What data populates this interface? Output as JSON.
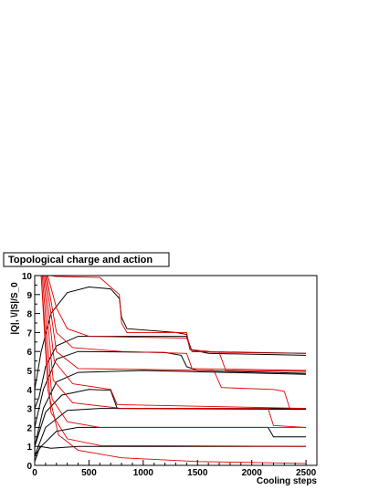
{
  "chart_data": {
    "type": "line",
    "title": "Topological charge and action",
    "xlabel": "Cooling steps",
    "ylabel": "|Q|, \\/|S|/S_0",
    "xlim": [
      0,
      2600
    ],
    "ylim": [
      0,
      10
    ],
    "x_ticks": [
      0,
      500,
      1000,
      1500,
      2000,
      2500
    ],
    "y_ticks": [
      0,
      1,
      2,
      3,
      4,
      5,
      6,
      7,
      8,
      9,
      10
    ],
    "grid": false,
    "colors": {
      "charge": "#000000",
      "action": "#e00000"
    },
    "series": [
      {
        "kind": "charge",
        "points": [
          [
            0,
            3.0
          ],
          [
            40,
            3.6
          ],
          [
            100,
            5.2
          ],
          [
            200,
            6.3
          ],
          [
            400,
            6.8
          ],
          [
            1400,
            6.8
          ],
          [
            1450,
            6.0
          ],
          [
            2500,
            5.9
          ]
        ]
      },
      {
        "kind": "charge",
        "points": [
          [
            0,
            4.0
          ],
          [
            60,
            6.0
          ],
          [
            150,
            8.0
          ],
          [
            300,
            9.1
          ],
          [
            500,
            9.4
          ],
          [
            700,
            9.3
          ],
          [
            780,
            8.8
          ],
          [
            800,
            7.8
          ],
          [
            850,
            7.2
          ],
          [
            1300,
            7.0
          ],
          [
            1400,
            6.9
          ],
          [
            1430,
            6.1
          ],
          [
            1600,
            5.9
          ],
          [
            2500,
            5.8
          ]
        ]
      },
      {
        "kind": "charge",
        "points": [
          [
            0,
            2.0
          ],
          [
            80,
            4.0
          ],
          [
            200,
            5.6
          ],
          [
            400,
            6.0
          ],
          [
            1200,
            5.95
          ],
          [
            1350,
            5.8
          ],
          [
            1400,
            5.2
          ],
          [
            1500,
            5.0
          ],
          [
            2500,
            4.85
          ]
        ]
      },
      {
        "kind": "charge",
        "points": [
          [
            0,
            1.0
          ],
          [
            80,
            3.0
          ],
          [
            200,
            4.4
          ],
          [
            400,
            4.9
          ],
          [
            1000,
            5.0
          ],
          [
            2500,
            4.8
          ]
        ]
      },
      {
        "kind": "charge",
        "points": [
          [
            0,
            1.0
          ],
          [
            100,
            2.8
          ],
          [
            250,
            3.7
          ],
          [
            500,
            4.0
          ],
          [
            700,
            3.95
          ],
          [
            760,
            3.0
          ],
          [
            2500,
            2.95
          ]
        ]
      },
      {
        "kind": "charge",
        "points": [
          [
            0,
            0.5
          ],
          [
            100,
            2.0
          ],
          [
            300,
            2.9
          ],
          [
            600,
            3.0
          ],
          [
            2500,
            3.0
          ]
        ]
      },
      {
        "kind": "charge",
        "points": [
          [
            0,
            0.5
          ],
          [
            60,
            1.0
          ],
          [
            200,
            1.8
          ],
          [
            400,
            2.0
          ],
          [
            2150,
            2.0
          ],
          [
            2200,
            1.5
          ],
          [
            2500,
            1.5
          ]
        ]
      },
      {
        "kind": "charge",
        "points": [
          [
            0,
            0.2
          ],
          [
            50,
            1.0
          ],
          [
            150,
            0.9
          ],
          [
            400,
            1.0
          ],
          [
            2500,
            1.0
          ]
        ]
      },
      {
        "kind": "charge",
        "points": [
          [
            0,
            0.0
          ],
          [
            100,
            0.0
          ],
          [
            2500,
            0.0
          ]
        ]
      },
      {
        "kind": "action",
        "points": [
          [
            150,
            10
          ],
          [
            200,
            9.95
          ],
          [
            600,
            9.9
          ],
          [
            780,
            9.0
          ],
          [
            800,
            7.5
          ],
          [
            830,
            7.2
          ],
          [
            850,
            7.0
          ],
          [
            1400,
            7.0
          ],
          [
            1430,
            6.1
          ],
          [
            1700,
            5.95
          ],
          [
            2500,
            5.9
          ]
        ]
      },
      {
        "kind": "action",
        "points": [
          [
            120,
            10
          ],
          [
            200,
            8.3
          ],
          [
            300,
            7.2
          ],
          [
            500,
            6.8
          ],
          [
            1400,
            6.7
          ],
          [
            1450,
            6.0
          ],
          [
            1700,
            5.95
          ],
          [
            1760,
            5.0
          ],
          [
            2500,
            4.95
          ]
        ]
      },
      {
        "kind": "action",
        "points": [
          [
            110,
            10
          ],
          [
            200,
            7.0
          ],
          [
            350,
            6.2
          ],
          [
            800,
            6.0
          ],
          [
            1400,
            5.9
          ],
          [
            1450,
            5.1
          ],
          [
            2500,
            5.0
          ]
        ]
      },
      {
        "kind": "action",
        "points": [
          [
            100,
            10
          ],
          [
            200,
            6.0
          ],
          [
            400,
            5.1
          ],
          [
            1650,
            5.0
          ],
          [
            1720,
            4.1
          ],
          [
            2200,
            4.0
          ],
          [
            2300,
            3.9
          ],
          [
            2350,
            3.0
          ],
          [
            2500,
            3.0
          ]
        ]
      },
      {
        "kind": "action",
        "points": [
          [
            90,
            10
          ],
          [
            180,
            5.5
          ],
          [
            350,
            4.3
          ],
          [
            700,
            4.0
          ],
          [
            760,
            3.2
          ],
          [
            2500,
            3.0
          ]
        ]
      },
      {
        "kind": "action",
        "points": [
          [
            80,
            10
          ],
          [
            170,
            4.5
          ],
          [
            350,
            3.3
          ],
          [
            800,
            3.0
          ],
          [
            2150,
            3.0
          ],
          [
            2200,
            2.1
          ],
          [
            2500,
            2.0
          ]
        ]
      },
      {
        "kind": "action",
        "points": [
          [
            70,
            10
          ],
          [
            160,
            3.5
          ],
          [
            300,
            2.3
          ],
          [
            600,
            2.0
          ],
          [
            2500,
            2.0
          ]
        ]
      },
      {
        "kind": "action",
        "points": [
          [
            60,
            10
          ],
          [
            150,
            2.8
          ],
          [
            300,
            1.4
          ],
          [
            600,
            1.05
          ],
          [
            2500,
            1.0
          ]
        ]
      },
      {
        "kind": "action",
        "points": [
          [
            60,
            10
          ],
          [
            120,
            4.0
          ],
          [
            220,
            1.6
          ],
          [
            400,
            0.8
          ],
          [
            800,
            0.4
          ],
          [
            1500,
            0.2
          ],
          [
            2500,
            0.1
          ]
        ]
      }
    ]
  }
}
